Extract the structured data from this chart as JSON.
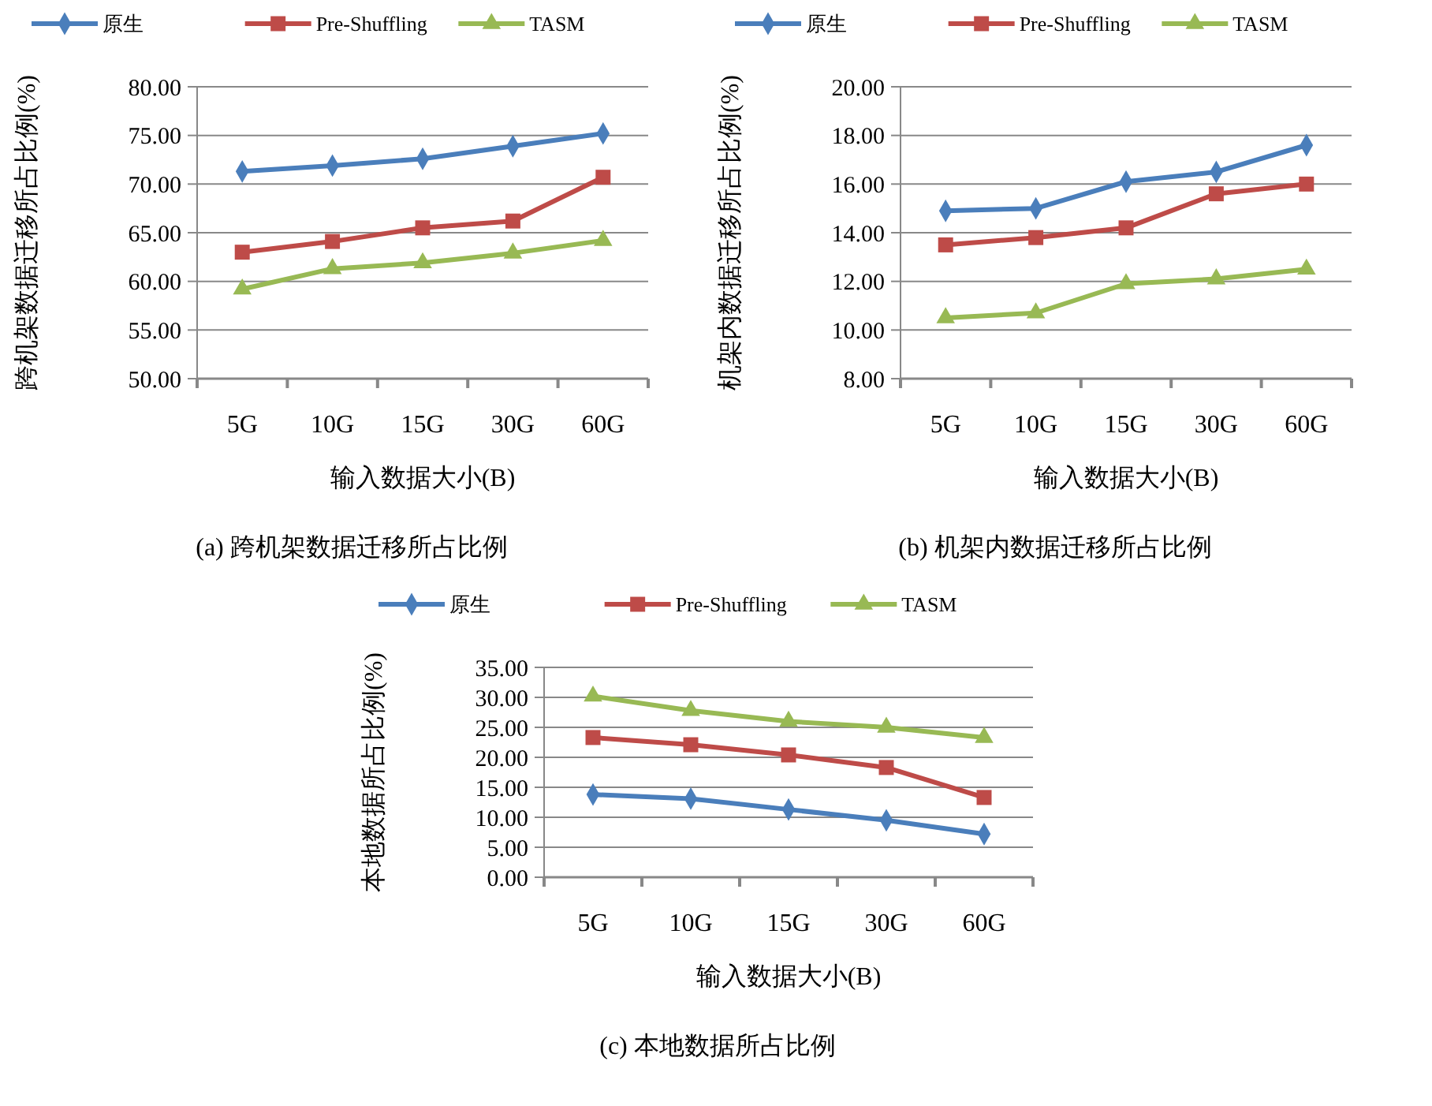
{
  "chart_data": [
    {
      "type": "line",
      "title": "(a)  跨机架数据迁移所占比例",
      "xlabel": "输入数据大小(B)",
      "ylabel": "跨机架数据迁移所占比例(%)",
      "categories": [
        "5G",
        "10G",
        "15G",
        "30G",
        "60G"
      ],
      "ylim": [
        50,
        80
      ],
      "yticks": [
        {
          "value": 50,
          "label": "50.00"
        },
        {
          "value": 55,
          "label": "55.00"
        },
        {
          "value": 60,
          "label": "60.00"
        },
        {
          "value": 65,
          "label": "65.00"
        },
        {
          "value": 70,
          "label": "70.00"
        },
        {
          "value": 75,
          "label": "75.00"
        },
        {
          "value": 80,
          "label": "80.00"
        }
      ],
      "grid": "y",
      "legend": "top",
      "series": [
        {
          "name": "原生",
          "color": "#4a7ebb",
          "marker": "diamond",
          "values": [
            71.3,
            71.9,
            72.6,
            73.9,
            75.2
          ]
        },
        {
          "name": "Pre-Shuffling",
          "color": "#be4b48",
          "marker": "square",
          "values": [
            63.0,
            64.1,
            65.5,
            66.2,
            70.7
          ]
        },
        {
          "name": "TASM",
          "color": "#98b954",
          "marker": "triangle",
          "values": [
            59.2,
            61.3,
            61.9,
            62.9,
            64.2
          ]
        }
      ]
    },
    {
      "type": "line",
      "title": "(b)  机架内数据迁移所占比例",
      "xlabel": "输入数据大小(B)",
      "ylabel": "机架内数据迁移所占比例(%)",
      "categories": [
        "5G",
        "10G",
        "15G",
        "30G",
        "60G"
      ],
      "ylim": [
        8,
        20
      ],
      "yticks": [
        {
          "value": 8,
          "label": "8.00"
        },
        {
          "value": 10,
          "label": "10.00"
        },
        {
          "value": 12,
          "label": "12.00"
        },
        {
          "value": 14,
          "label": "14.00"
        },
        {
          "value": 16,
          "label": "16.00"
        },
        {
          "value": 18,
          "label": "18.00"
        },
        {
          "value": 20,
          "label": "20.00"
        }
      ],
      "grid": "y",
      "legend": "top",
      "series": [
        {
          "name": "原生",
          "color": "#4a7ebb",
          "marker": "diamond",
          "values": [
            14.9,
            15.0,
            16.1,
            16.5,
            17.6
          ]
        },
        {
          "name": "Pre-Shuffling",
          "color": "#be4b48",
          "marker": "square",
          "values": [
            13.5,
            13.8,
            14.2,
            15.6,
            16.0
          ]
        },
        {
          "name": "TASM",
          "color": "#98b954",
          "marker": "triangle",
          "values": [
            10.5,
            10.7,
            11.9,
            12.1,
            12.5
          ]
        }
      ]
    },
    {
      "type": "line",
      "title": "(c)  本地数据所占比例",
      "xlabel": "输入数据大小(B)",
      "ylabel": "本地数据所占比例(%)",
      "categories": [
        "5G",
        "10G",
        "15G",
        "30G",
        "60G"
      ],
      "ylim": [
        0,
        35
      ],
      "yticks": [
        {
          "value": 0,
          "label": "0.00"
        },
        {
          "value": 5,
          "label": "5.00"
        },
        {
          "value": 10,
          "label": "10.00"
        },
        {
          "value": 15,
          "label": "15.00"
        },
        {
          "value": 20,
          "label": "20.00"
        },
        {
          "value": 25,
          "label": "25.00"
        },
        {
          "value": 30,
          "label": "30.00"
        },
        {
          "value": 35,
          "label": "35.00"
        }
      ],
      "grid": "y",
      "legend": "top",
      "series": [
        {
          "name": "原生",
          "color": "#4a7ebb",
          "marker": "diamond",
          "values": [
            13.8,
            13.1,
            11.3,
            9.5,
            7.2
          ]
        },
        {
          "name": "Pre-Shuffling",
          "color": "#be4b48",
          "marker": "square",
          "values": [
            23.3,
            22.1,
            20.4,
            18.3,
            13.3
          ]
        },
        {
          "name": "TASM",
          "color": "#98b954",
          "marker": "triangle",
          "values": [
            30.2,
            27.8,
            26.0,
            25.0,
            23.3
          ]
        }
      ]
    }
  ]
}
